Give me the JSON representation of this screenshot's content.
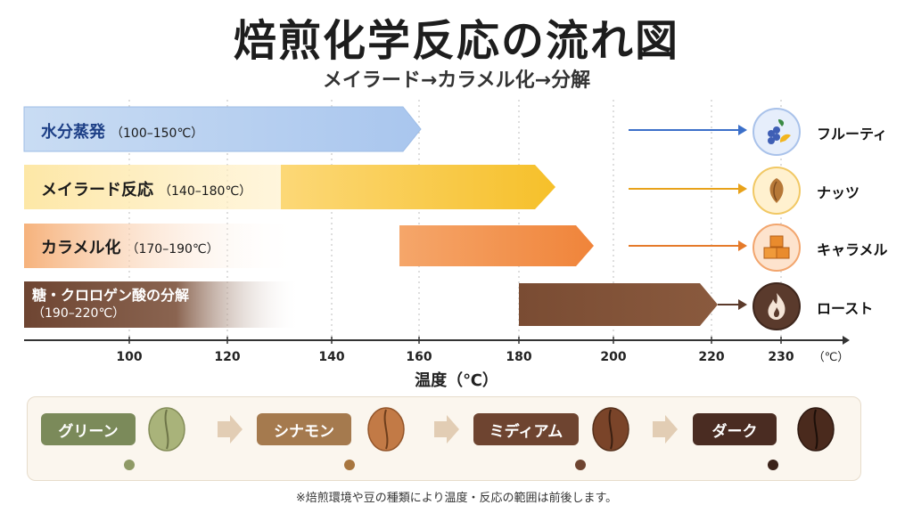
{
  "title": "焙煎化学反応の流れ図",
  "subtitle": "メイラード→カラメル化→分解",
  "reactions": [
    {
      "name": "水分蒸発",
      "range": "（100–150℃）"
    },
    {
      "name": "メイラード反応",
      "range": "（140–180℃）"
    },
    {
      "name": "カラメル化",
      "range": "（170–190℃）"
    },
    {
      "name": "糖・クロロゲン酸の分解",
      "range": "（190–220℃）"
    }
  ],
  "flavors": [
    {
      "label": "フルーティ",
      "icon": "fruit-icon",
      "color": "#3b6fc9"
    },
    {
      "label": "ナッツ",
      "icon": "almond-icon",
      "color": "#e8a21a"
    },
    {
      "label": "キャラメル",
      "icon": "caramel-cubes-icon",
      "color": "#e57a2a"
    },
    {
      "label": "ロースト",
      "icon": "flame-icon",
      "color": "#5b3a2a"
    }
  ],
  "axis": {
    "title": "温度（℃）",
    "unit": "（℃）",
    "ticks": [
      100,
      120,
      140,
      160,
      180,
      200,
      220,
      230
    ]
  },
  "roast_stages": [
    {
      "label": "グリーン",
      "color": "#7b8a5a"
    },
    {
      "label": "シナモン",
      "color": "#a57a4e"
    },
    {
      "label": "ミディアム",
      "color": "#6e4430"
    },
    {
      "label": "ダーク",
      "color": "#4a2c22"
    }
  ],
  "footnote": "※焙煎環境や豆の種類により温度・反応の範囲は前後します。"
}
